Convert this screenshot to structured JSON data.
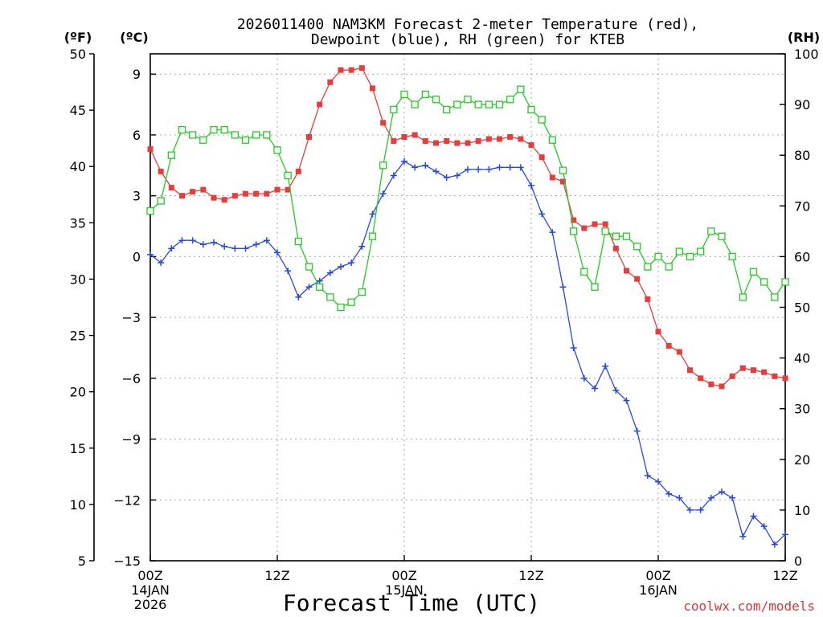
{
  "chart_data": {
    "type": "line",
    "title_line1": "2026011400 NAM3KM Forecast 2-meter Temperature (red),",
    "title_line2": "Dewpoint (blue), RH (green) for KTEB",
    "xlabel": "Forecast Time (UTC)",
    "watermark": "coolwx.com/models",
    "units": {
      "left_outer": "(ºF)",
      "left_inner": "(ºC)",
      "right": "(RH)"
    },
    "x_hours_range": [
      0,
      60
    ],
    "x_ticks": [
      {
        "hour": 0,
        "label": "00Z",
        "sub1": "14JAN",
        "sub2": "2026"
      },
      {
        "hour": 12,
        "label": "12Z",
        "sub1": "",
        "sub2": ""
      },
      {
        "hour": 24,
        "label": "00Z",
        "sub1": "15JAN",
        "sub2": ""
      },
      {
        "hour": 36,
        "label": "12Z",
        "sub1": "",
        "sub2": ""
      },
      {
        "hour": 48,
        "label": "00Z",
        "sub1": "16JAN",
        "sub2": ""
      },
      {
        "hour": 60,
        "label": "12Z",
        "sub1": "",
        "sub2": ""
      }
    ],
    "celsius_range": [
      -15,
      10
    ],
    "celsius_ticks": [
      {
        "v": 9,
        "label": "9"
      },
      {
        "v": 6,
        "label": "6"
      },
      {
        "v": 3,
        "label": "3"
      },
      {
        "v": 0,
        "label": "0"
      },
      {
        "v": -3,
        "label": "−3"
      },
      {
        "v": -6,
        "label": "−6"
      },
      {
        "v": -9,
        "label": "−9"
      },
      {
        "v": -12,
        "label": "−12"
      },
      {
        "v": -15,
        "label": "−15"
      }
    ],
    "fahrenheit_ticks": [
      {
        "v": 50,
        "label": "50"
      },
      {
        "v": 45,
        "label": "45"
      },
      {
        "v": 40,
        "label": "40"
      },
      {
        "v": 35,
        "label": "35"
      },
      {
        "v": 30,
        "label": "30"
      },
      {
        "v": 25,
        "label": "25"
      },
      {
        "v": 20,
        "label": "20"
      },
      {
        "v": 15,
        "label": "15"
      },
      {
        "v": 10,
        "label": "10"
      },
      {
        "v": 5,
        "label": "5"
      }
    ],
    "rh_range": [
      0,
      100
    ],
    "rh_ticks": [
      {
        "v": 100,
        "label": "100"
      },
      {
        "v": 90,
        "label": "90"
      },
      {
        "v": 80,
        "label": "80"
      },
      {
        "v": 70,
        "label": "70"
      },
      {
        "v": 60,
        "label": "60"
      },
      {
        "v": 50,
        "label": "50"
      },
      {
        "v": 40,
        "label": "40"
      },
      {
        "v": 30,
        "label": "30"
      },
      {
        "v": 20,
        "label": "20"
      },
      {
        "v": 10,
        "label": "10"
      },
      {
        "v": 0,
        "label": "0"
      }
    ],
    "grid": true,
    "series": [
      {
        "name": "Temperature",
        "unit": "C",
        "color": "#e83c3c",
        "marker": "filled-square",
        "x": [
          0,
          1,
          2,
          3,
          4,
          5,
          6,
          7,
          8,
          9,
          10,
          11,
          12,
          13,
          14,
          15,
          16,
          17,
          18,
          19,
          20,
          21,
          22,
          23,
          24,
          25,
          26,
          27,
          28,
          29,
          30,
          31,
          32,
          33,
          34,
          35,
          36,
          37,
          38,
          39,
          40,
          41,
          42,
          43,
          44,
          45,
          46,
          47,
          48,
          49,
          50,
          51,
          52,
          53,
          54,
          55,
          56,
          57,
          58,
          59,
          60
        ],
        "values": [
          5.3,
          4.2,
          3.4,
          3.0,
          3.2,
          3.3,
          2.9,
          2.8,
          3.0,
          3.1,
          3.1,
          3.1,
          3.3,
          3.3,
          4.2,
          5.9,
          7.5,
          8.6,
          9.2,
          9.2,
          9.3,
          8.3,
          6.6,
          5.7,
          5.9,
          6.0,
          5.7,
          5.6,
          5.7,
          5.6,
          5.6,
          5.7,
          5.8,
          5.8,
          5.9,
          5.8,
          5.5,
          4.9,
          3.9,
          3.7,
          1.8,
          1.4,
          1.6,
          1.6,
          0.4,
          -0.7,
          -1.1,
          -2.1,
          -3.7,
          -4.4,
          -4.7,
          -5.6,
          -6.0,
          -6.3,
          -6.4,
          -5.9,
          -5.5,
          -5.6,
          -5.7,
          -5.9,
          -6.0
        ]
      },
      {
        "name": "Dewpoint",
        "unit": "C",
        "color": "#2848e0",
        "marker": "plus",
        "x": [
          0,
          1,
          2,
          3,
          4,
          5,
          6,
          7,
          8,
          9,
          10,
          11,
          12,
          13,
          14,
          15,
          16,
          17,
          18,
          19,
          20,
          21,
          22,
          23,
          24,
          25,
          26,
          27,
          28,
          29,
          30,
          31,
          32,
          33,
          34,
          35,
          36,
          37,
          38,
          39,
          40,
          41,
          42,
          43,
          44,
          45,
          46,
          47,
          48,
          49,
          50,
          51,
          52,
          53,
          54,
          55,
          56,
          57,
          58,
          59,
          60
        ],
        "values": [
          0.1,
          -0.3,
          0.4,
          0.8,
          0.8,
          0.6,
          0.7,
          0.5,
          0.4,
          0.4,
          0.6,
          0.8,
          0.2,
          -0.7,
          -2.0,
          -1.5,
          -1.2,
          -0.8,
          -0.5,
          -0.3,
          0.5,
          2.1,
          3.1,
          4.0,
          4.7,
          4.4,
          4.5,
          4.2,
          3.9,
          4.0,
          4.3,
          4.3,
          4.3,
          4.4,
          4.4,
          4.4,
          3.5,
          2.1,
          1.2,
          -1.5,
          -4.5,
          -6.0,
          -6.5,
          -5.4,
          -6.6,
          -7.1,
          -8.6,
          -10.8,
          -11.1,
          -11.7,
          -11.9,
          -12.5,
          -12.5,
          -11.9,
          -11.6,
          -11.9,
          -13.8,
          -12.8,
          -13.3,
          -14.2,
          -13.7
        ]
      },
      {
        "name": "RH",
        "unit": "%",
        "color": "#22cc22",
        "marker": "open-square",
        "x": [
          0,
          1,
          2,
          3,
          4,
          5,
          6,
          7,
          8,
          9,
          10,
          11,
          12,
          13,
          14,
          15,
          16,
          17,
          18,
          19,
          20,
          21,
          22,
          23,
          24,
          25,
          26,
          27,
          28,
          29,
          30,
          31,
          32,
          33,
          34,
          35,
          36,
          37,
          38,
          39,
          40,
          41,
          42,
          43,
          44,
          45,
          46,
          47,
          48,
          49,
          50,
          51,
          52,
          53,
          54,
          55,
          56,
          57,
          58,
          59,
          60
        ],
        "values": [
          69,
          71,
          80,
          85,
          84,
          83,
          85,
          85,
          84,
          83,
          84,
          84,
          81,
          76,
          63,
          58,
          54,
          52,
          50,
          51,
          53,
          64,
          78,
          89,
          92,
          90,
          92,
          91,
          89,
          90,
          91,
          90,
          90,
          90,
          91,
          93,
          89,
          87,
          83,
          77,
          65,
          57,
          54,
          65,
          64,
          64,
          62,
          58,
          60,
          58,
          61,
          60,
          61,
          65,
          64,
          60,
          52,
          57,
          55,
          52,
          55
        ]
      }
    ]
  }
}
